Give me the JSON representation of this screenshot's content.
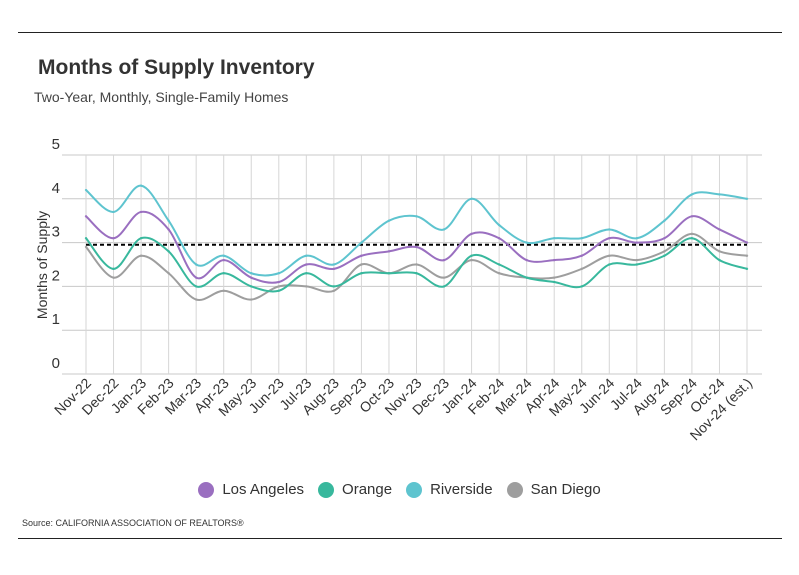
{
  "header": {
    "title": "Months of Supply Inventory",
    "subtitle": "Two-Year, Monthly, Single-Family Homes"
  },
  "footer": {
    "source": "Source:  CALIFORNIA ASSOCIATION OF REALTORS®"
  },
  "chart_data": {
    "type": "line",
    "title": "Months of Supply Inventory",
    "subtitle": "Two-Year, Monthly, Single-Family Homes",
    "xlabel": "",
    "ylabel": "Months of Supply",
    "ylim": [
      0,
      5
    ],
    "yticks": [
      "0",
      "1",
      "2",
      "3",
      "4",
      "5"
    ],
    "grid": true,
    "legend_position": "bottom",
    "reference_line": 2.95,
    "categories": [
      "Nov-22",
      "Dec-22",
      "Jan-23",
      "Feb-23",
      "Mar-23",
      "Apr-23",
      "May-23",
      "Jun-23",
      "Jul-23",
      "Aug-23",
      "Sep-23",
      "Oct-23",
      "Nov-23",
      "Dec-23",
      "Jan-24",
      "Feb-24",
      "Mar-24",
      "Apr-24",
      "May-24",
      "Jun-24",
      "Jul-24",
      "Aug-24",
      "Sep-24",
      "Oct-24",
      "Nov-24 (est.)"
    ],
    "series": [
      {
        "name": "Los Angeles",
        "color": "#9a6fc0",
        "values": [
          3.6,
          3.1,
          3.7,
          3.3,
          2.2,
          2.6,
          2.2,
          2.1,
          2.5,
          2.4,
          2.7,
          2.8,
          2.9,
          2.6,
          3.2,
          3.1,
          2.6,
          2.6,
          2.7,
          3.1,
          3.0,
          3.1,
          3.6,
          3.3,
          3.0
        ]
      },
      {
        "name": "Orange",
        "color": "#38b89d",
        "values": [
          3.1,
          2.4,
          3.1,
          2.8,
          2.0,
          2.3,
          2.0,
          1.9,
          2.3,
          2.0,
          2.3,
          2.3,
          2.3,
          2.0,
          2.7,
          2.5,
          2.2,
          2.1,
          2.0,
          2.5,
          2.5,
          2.7,
          3.1,
          2.6,
          2.4
        ]
      },
      {
        "name": "Riverside",
        "color": "#5ec4cf",
        "values": [
          4.2,
          3.7,
          4.3,
          3.5,
          2.5,
          2.7,
          2.3,
          2.3,
          2.7,
          2.5,
          3.0,
          3.5,
          3.6,
          3.3,
          4.0,
          3.4,
          3.0,
          3.1,
          3.1,
          3.3,
          3.1,
          3.5,
          4.1,
          4.1,
          4.0
        ]
      },
      {
        "name": "San Diego",
        "color": "#9e9e9e",
        "values": [
          2.9,
          2.2,
          2.7,
          2.3,
          1.7,
          1.9,
          1.7,
          2.0,
          2.0,
          1.9,
          2.5,
          2.3,
          2.5,
          2.2,
          2.6,
          2.3,
          2.2,
          2.2,
          2.4,
          2.7,
          2.6,
          2.8,
          3.2,
          2.8,
          2.7
        ]
      }
    ]
  }
}
